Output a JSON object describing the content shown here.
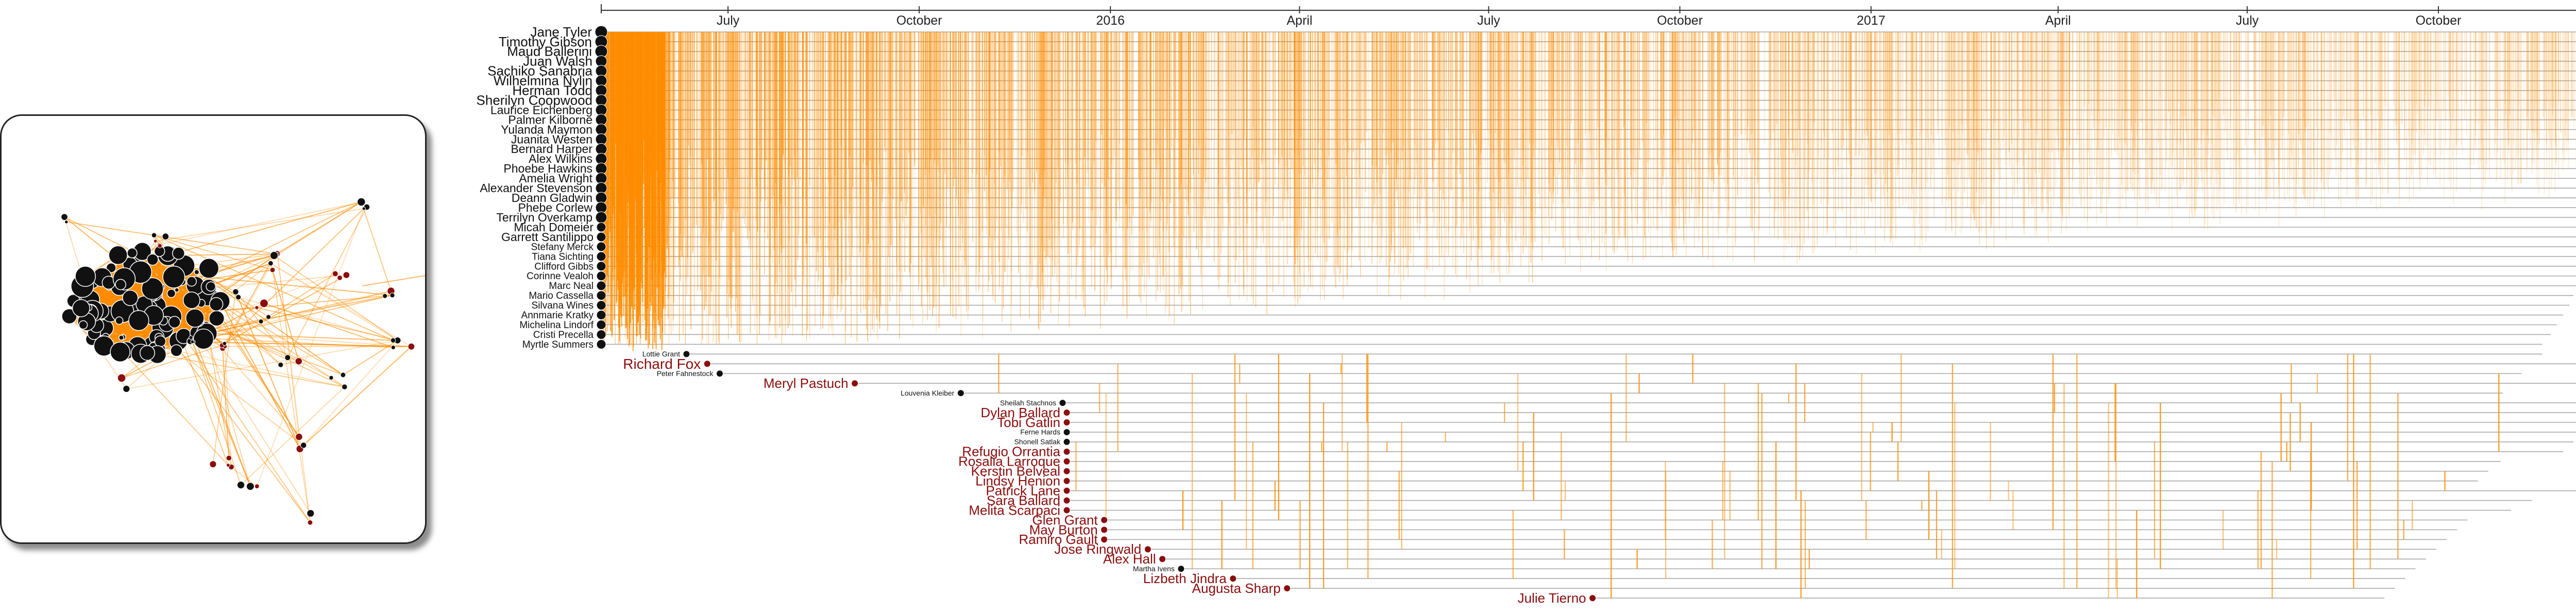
{
  "chart_data": {
    "type": "timeline",
    "x_axis": {
      "start": "2015-05-01",
      "end": "2017-12-31",
      "tick_labels": [
        {
          "label": "July",
          "date": "2015-07-01"
        },
        {
          "label": "October",
          "date": "2015-10-01"
        },
        {
          "label": "2016",
          "date": "2016-01-01"
        },
        {
          "label": "April",
          "date": "2016-04-01"
        },
        {
          "label": "July",
          "date": "2016-07-01"
        },
        {
          "label": "October",
          "date": "2016-10-01"
        },
        {
          "label": "2017",
          "date": "2017-01-01"
        },
        {
          "label": "April",
          "date": "2017-04-01"
        },
        {
          "label": "July",
          "date": "2017-07-01"
        },
        {
          "label": "October",
          "date": "2017-10-01"
        }
      ]
    },
    "colors": {
      "core_name": "#111111",
      "late_name": "#8b0d0d",
      "link": "#ff8c00",
      "lifeline": "#9a9a9a"
    },
    "people": [
      {
        "name": "Jane Tyler",
        "start": "2015-05-01",
        "end": "2017-12-27",
        "group": "core"
      },
      {
        "name": "Timothy Gibson",
        "start": "2015-05-01",
        "end": "2017-12-27",
        "group": "core"
      },
      {
        "name": "Maud Ballerini",
        "start": "2015-05-01",
        "end": "2017-12-26",
        "group": "core"
      },
      {
        "name": "Juan Walsh",
        "start": "2015-05-01",
        "end": "2017-12-26",
        "group": "core"
      },
      {
        "name": "Sachiko Sanabria",
        "start": "2015-05-01",
        "end": "2017-12-25",
        "group": "core"
      },
      {
        "name": "Wilhelmina Nylin",
        "start": "2015-05-01",
        "end": "2017-12-25",
        "group": "core"
      },
      {
        "name": "Herman Todd",
        "start": "2015-05-01",
        "end": "2017-12-24",
        "group": "core"
      },
      {
        "name": "Sherilyn Coopwood",
        "start": "2015-05-01",
        "end": "2017-12-24",
        "group": "core"
      },
      {
        "name": "Laurice Eichenberg",
        "start": "2015-05-01",
        "end": "2017-12-23",
        "group": "core"
      },
      {
        "name": "Palmer Kilborne",
        "start": "2015-05-01",
        "end": "2017-12-23",
        "group": "core"
      },
      {
        "name": "Yulanda Maymon",
        "start": "2015-05-01",
        "end": "2017-12-22",
        "group": "core"
      },
      {
        "name": "Juanita Westen",
        "start": "2015-05-01",
        "end": "2017-12-22",
        "group": "core"
      },
      {
        "name": "Bernard Harper",
        "start": "2015-05-01",
        "end": "2017-12-21",
        "group": "core"
      },
      {
        "name": "Alex Wilkins",
        "start": "2015-05-01",
        "end": "2017-12-21",
        "group": "core"
      },
      {
        "name": "Phoebe Hawkins",
        "start": "2015-05-01",
        "end": "2017-12-20",
        "group": "core"
      },
      {
        "name": "Amelia Wright",
        "start": "2015-05-01",
        "end": "2017-12-20",
        "group": "core"
      },
      {
        "name": "Alexander Stevenson",
        "start": "2015-05-01",
        "end": "2017-12-19",
        "group": "core"
      },
      {
        "name": "Deann Gladwin",
        "start": "2015-05-01",
        "end": "2017-12-18",
        "group": "core"
      },
      {
        "name": "Phebe Corlew",
        "start": "2015-05-01",
        "end": "2017-12-17",
        "group": "core"
      },
      {
        "name": "Terrilyn Overkamp",
        "start": "2015-05-01",
        "end": "2017-12-16",
        "group": "core"
      },
      {
        "name": "Micah Domeier",
        "start": "2015-05-01",
        "end": "2017-12-15",
        "group": "core"
      },
      {
        "name": "Garrett Santilippo",
        "start": "2015-05-01",
        "end": "2017-12-14",
        "group": "core"
      },
      {
        "name": "Stefany Merck",
        "start": "2015-05-01",
        "end": "2017-12-13",
        "group": "core"
      },
      {
        "name": "Tiana Sichting",
        "start": "2015-05-01",
        "end": "2017-12-12",
        "group": "core"
      },
      {
        "name": "Clifford Gibbs",
        "start": "2015-05-01",
        "end": "2017-12-11",
        "group": "core"
      },
      {
        "name": "Corinne Vealoh",
        "start": "2015-05-01",
        "end": "2017-12-09",
        "group": "core"
      },
      {
        "name": "Marc Neal",
        "start": "2015-05-01",
        "end": "2017-12-07",
        "group": "core"
      },
      {
        "name": "Mario Cassella",
        "start": "2015-05-01",
        "end": "2017-12-05",
        "group": "core"
      },
      {
        "name": "Silvana Wines",
        "start": "2015-05-01",
        "end": "2017-12-03",
        "group": "core"
      },
      {
        "name": "Annmarie Kratky",
        "start": "2015-05-01",
        "end": "2017-11-30",
        "group": "core"
      },
      {
        "name": "Michelina Lindorf",
        "start": "2015-05-01",
        "end": "2017-11-27",
        "group": "core"
      },
      {
        "name": "Cristi Precella",
        "start": "2015-05-01",
        "end": "2017-11-24",
        "group": "core"
      },
      {
        "name": "Myrtle Summers",
        "start": "2015-05-01",
        "end": "2017-11-20",
        "group": "core"
      },
      {
        "name": "Lottie Grant",
        "start": "2015-06-11",
        "end": "2017-11-20",
        "group": "core"
      },
      {
        "name": "Richard Fox",
        "start": "2015-06-21",
        "end": "2017-12-27",
        "group": "late"
      },
      {
        "name": "Peter Fahnestock",
        "start": "2015-06-27",
        "end": "2017-11-10",
        "group": "core"
      },
      {
        "name": "Meryl Pastuch",
        "start": "2015-08-31",
        "end": "2017-12-27",
        "group": "late"
      },
      {
        "name": "Louvenia Kleiber",
        "start": "2015-10-21",
        "end": "2017-11-01",
        "group": "core"
      },
      {
        "name": "Sheilah Stachnos",
        "start": "2015-12-09",
        "end": "2017-12-20",
        "group": "core"
      },
      {
        "name": "Dylan Ballard",
        "start": "2015-12-11",
        "end": "2017-12-20",
        "group": "late"
      },
      {
        "name": "Tobi Gatlin",
        "start": "2015-12-11",
        "end": "2017-12-15",
        "group": "late"
      },
      {
        "name": "Ferne Hards",
        "start": "2015-12-11",
        "end": "2017-12-10",
        "group": "core"
      },
      {
        "name": "Shonell Satlak",
        "start": "2015-12-11",
        "end": "2017-12-05",
        "group": "core"
      },
      {
        "name": "Refugio Orrantia",
        "start": "2015-12-11",
        "end": "2017-11-30",
        "group": "late"
      },
      {
        "name": "Rosalia Larroque",
        "start": "2015-12-11",
        "end": "2017-10-31",
        "group": "late"
      },
      {
        "name": "Kerstin Belveal",
        "start": "2015-12-11",
        "end": "2017-10-25",
        "group": "late"
      },
      {
        "name": "Lindsy Henion",
        "start": "2015-12-11",
        "end": "2017-10-20",
        "group": "late"
      },
      {
        "name": "Patrick Lane",
        "start": "2015-12-11",
        "end": "2017-12-23",
        "group": "late"
      },
      {
        "name": "Sara Ballard",
        "start": "2015-12-11",
        "end": "2017-11-15",
        "group": "late"
      },
      {
        "name": "Melita Scarpaci",
        "start": "2015-12-11",
        "end": "2017-11-05",
        "group": "late"
      },
      {
        "name": "Glen Grant",
        "start": "2015-12-29",
        "end": "2017-10-15",
        "group": "late"
      },
      {
        "name": "May Burton",
        "start": "2015-12-29",
        "end": "2017-10-10",
        "group": "late"
      },
      {
        "name": "Ramiro Gault",
        "start": "2015-12-29",
        "end": "2017-10-05",
        "group": "late"
      },
      {
        "name": "Jose Ringwald",
        "start": "2016-01-19",
        "end": "2017-09-30",
        "group": "late"
      },
      {
        "name": "Alex Hall",
        "start": "2016-01-26",
        "end": "2017-09-25",
        "group": "late"
      },
      {
        "name": "Martha Ivens",
        "start": "2016-02-04",
        "end": "2017-09-20",
        "group": "core"
      },
      {
        "name": "Lizbeth Jindra",
        "start": "2016-02-29",
        "end": "2017-09-15",
        "group": "late"
      },
      {
        "name": "Augusta Sharp",
        "start": "2016-03-26",
        "end": "2017-09-10",
        "group": "late"
      },
      {
        "name": "Julie Tierno",
        "start": "2016-08-20",
        "end": "2017-09-05",
        "group": "late"
      }
    ]
  },
  "network": {
    "core_color": "#111111",
    "late_color": "#8b0d0d",
    "edge_color": "#ff8c00",
    "cluster_fill": "#ff8c00"
  }
}
